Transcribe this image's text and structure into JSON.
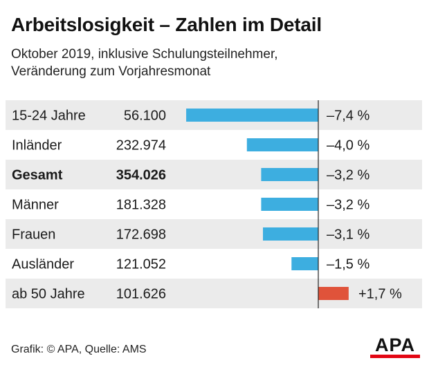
{
  "title": "Arbeitslosigkeit – Zahlen im Detail",
  "subtitle_line1": "Oktober 2019, inklusive Schulungsteilnehmer,",
  "subtitle_line2": "Veränderung zum Vorjahresmonat",
  "footer": "Grafik: © APA, Quelle: AMS",
  "logo_text": "APA",
  "colors": {
    "negative": "#3daee0",
    "positive": "#e0533a",
    "stripe": "#ebebeb",
    "axis": "#222222",
    "logo_red": "#e30613"
  },
  "chart_data": {
    "type": "bar",
    "orientation": "horizontal",
    "unit": "%",
    "categories": [
      "15-24 Jahre",
      "Inländer",
      "Gesamt",
      "Männer",
      "Frauen",
      "Ausländer",
      "ab 50 Jahre"
    ],
    "counts": [
      "56.100",
      "232.974",
      "354.026",
      "181.328",
      "172.698",
      "121.052",
      "101.626"
    ],
    "values": [
      -7.4,
      -4.0,
      -3.2,
      -3.2,
      -3.1,
      -1.5,
      1.7
    ],
    "labels": [
      "–7,4 %",
      "–4,0 %",
      "–3,2 %",
      "–3,2 %",
      "–3,1 %",
      "–1,5 %",
      "+1,7 %"
    ],
    "bold": [
      false,
      false,
      true,
      false,
      false,
      false,
      false
    ],
    "xlim": [
      -7.4,
      1.7
    ]
  }
}
